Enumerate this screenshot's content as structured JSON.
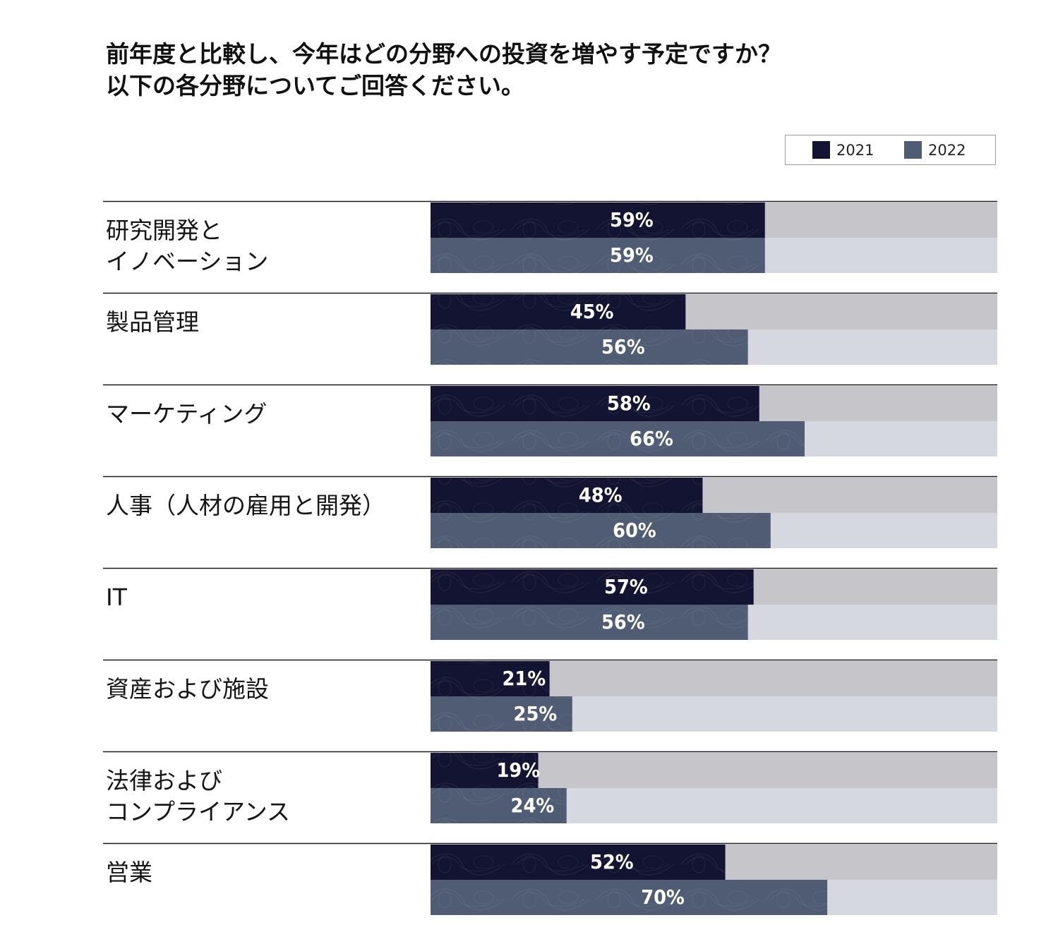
{
  "chart_data": {
    "type": "bar",
    "orientation": "horizontal",
    "title": [
      "前年度と比較し、今年はどの分野への投資を増やす予定ですか？",
      "以下の各分野についてご回答ください。"
    ],
    "xlim": [
      0,
      100
    ],
    "unit": "%",
    "legend_position": "top-right",
    "categories": [
      [
        "研究開発と",
        "イノベーション"
      ],
      [
        "製品管理"
      ],
      [
        "マーケティング"
      ],
      [
        "人事（人材の雇用と開発）"
      ],
      [
        "IT"
      ],
      [
        "資産および施設"
      ],
      [
        "法律および",
        "コンプライアンス"
      ],
      [
        "営業"
      ]
    ],
    "series": [
      {
        "name": "2021",
        "color": "#131431",
        "track_color": "#c6c6ca",
        "values": [
          59,
          45,
          58,
          48,
          57,
          21,
          19,
          52
        ],
        "labels": [
          "59%",
          "45%",
          "58%",
          "48%",
          "57%",
          "21%",
          "19%",
          "52%"
        ]
      },
      {
        "name": "2022",
        "color": "#4f5c73",
        "track_color": "#d6d8df",
        "values": [
          59,
          56,
          66,
          60,
          56,
          25,
          24,
          70
        ],
        "labels": [
          "59%",
          "56%",
          "66%",
          "60%",
          "56%",
          "25%",
          "24%",
          "70%"
        ]
      }
    ]
  }
}
